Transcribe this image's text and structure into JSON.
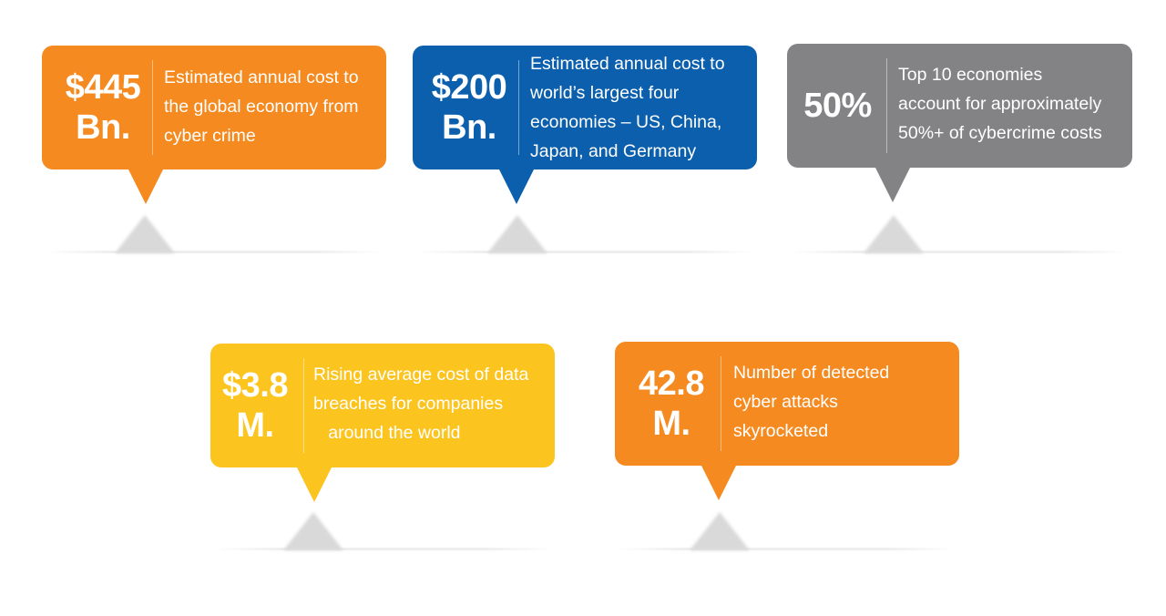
{
  "colors": {
    "orange": "#f58a20",
    "blue": "#0b5fad",
    "gray": "#838386",
    "yellow": "#fcc41f"
  },
  "stats": [
    {
      "value_line1": "$445",
      "value_line2": "Bn.",
      "description": "Estimated annual cost to\nthe global economy from\ncyber crime"
    },
    {
      "value_line1": "$200",
      "value_line2": "Bn.",
      "description": "Estimated annual cost to\nworld’s largest four\neconomies – US, China,\nJapan, and Germany"
    },
    {
      "value_line1": "50%",
      "value_line2": "",
      "description": "Top 10 economies\naccount for approximately\n50%+ of cybercrime costs"
    },
    {
      "value_line1": "$3.8",
      "value_line2": "M.",
      "description": "Rising average cost of data\nbreaches for companies\n   around the world"
    },
    {
      "value_line1": "42.8",
      "value_line2": "M.",
      "description": "Number of detected\ncyber attacks\nskyrocketed"
    }
  ]
}
